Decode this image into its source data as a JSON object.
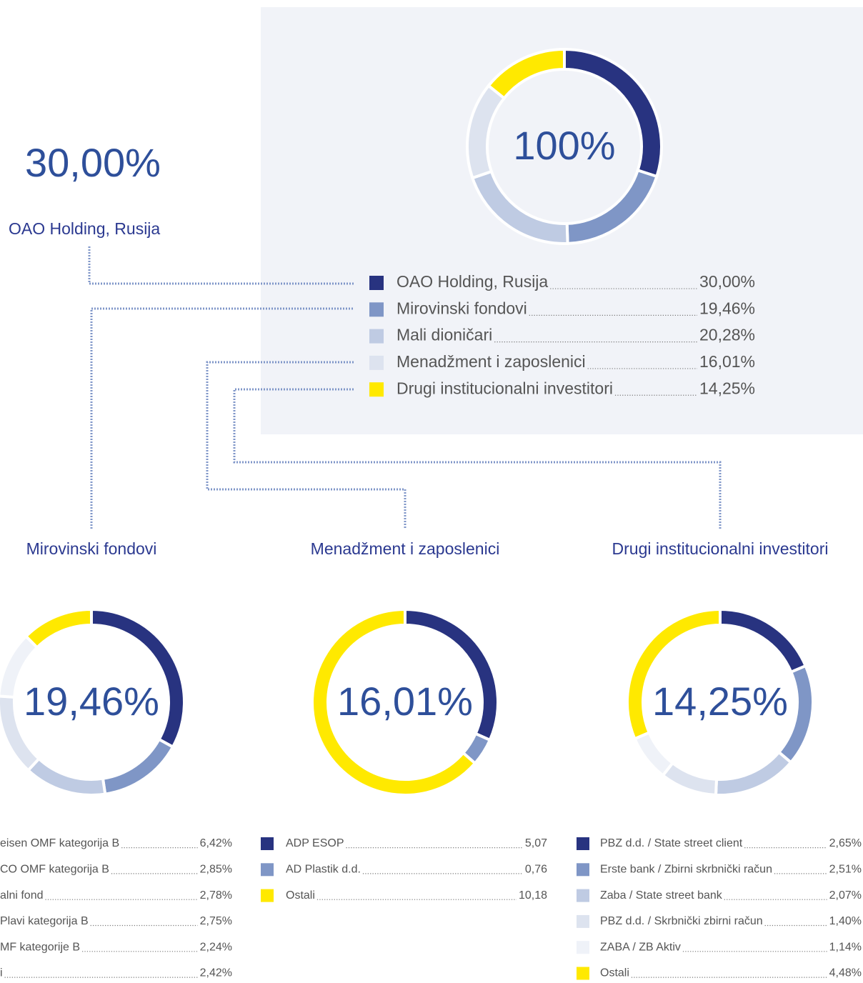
{
  "chart_data": [
    {
      "type": "donut",
      "center_label": "100%",
      "annotations": [
        "30,00%",
        "OAO Holding, Rusija"
      ],
      "categories": [
        "OAO Holding, Rusija",
        "Mirovinski fondovi",
        "Mali dioničari",
        "Menadžment i zaposlenici",
        "Drugi institucionalni investitori"
      ],
      "values": [
        30.0,
        19.46,
        20.28,
        16.01,
        14.25
      ],
      "value_labels": [
        "30,00%",
        "19,46%",
        "20,28%",
        "16,01%",
        "14,25%"
      ],
      "colors": [
        "#283380",
        "#7f96c6",
        "#bfcbe3",
        "#dde3ef",
        "#ffe900"
      ]
    },
    {
      "type": "donut",
      "title": "Mirovinski fondovi",
      "center_label": "19,46%",
      "categories": [
        "eisen OMF kategorija B",
        "CO OMF kategorija B",
        "alni fond",
        "Plavi kategorija B",
        "MF kategorije B",
        "i"
      ],
      "values": [
        6.42,
        2.85,
        2.78,
        2.75,
        2.24,
        2.42
      ],
      "value_labels": [
        "6,42%",
        "2,85%",
        "2,78%",
        "2,75%",
        "2,24%",
        "2,42%"
      ],
      "colors": [
        "#283380",
        "#7f96c6",
        "#bfcbe3",
        "#dde3ef",
        "#eff2f8",
        "#ffe900"
      ]
    },
    {
      "type": "donut",
      "title": "Menadžment i zaposlenici",
      "center_label": "16,01%",
      "categories": [
        "ADP ESOP",
        "AD Plastik d.d.",
        "Ostali"
      ],
      "values": [
        5.07,
        0.76,
        10.18
      ],
      "value_labels": [
        "5,07",
        "0,76",
        "10,18"
      ],
      "colors": [
        "#283380",
        "#7f96c6",
        "#ffe900"
      ]
    },
    {
      "type": "donut",
      "title": "Drugi institucionalni investitori",
      "center_label": "14,25%",
      "categories": [
        "PBZ d.d. / State street client",
        "Erste bank / Zbirni skrbnički račun",
        "Zaba / State street bank",
        "PBZ d.d. / Skrbnički zbirni račun",
        "ZABA / ZB Aktiv",
        "Ostali"
      ],
      "values": [
        2.65,
        2.51,
        2.07,
        1.4,
        1.14,
        4.48
      ],
      "value_labels": [
        "2,65%",
        "2,51%",
        "2,07%",
        "1,40%",
        "1,14%",
        "4,48%"
      ],
      "colors": [
        "#283380",
        "#7f96c6",
        "#bfcbe3",
        "#dde3ef",
        "#eff2f8",
        "#ffe900"
      ]
    }
  ]
}
